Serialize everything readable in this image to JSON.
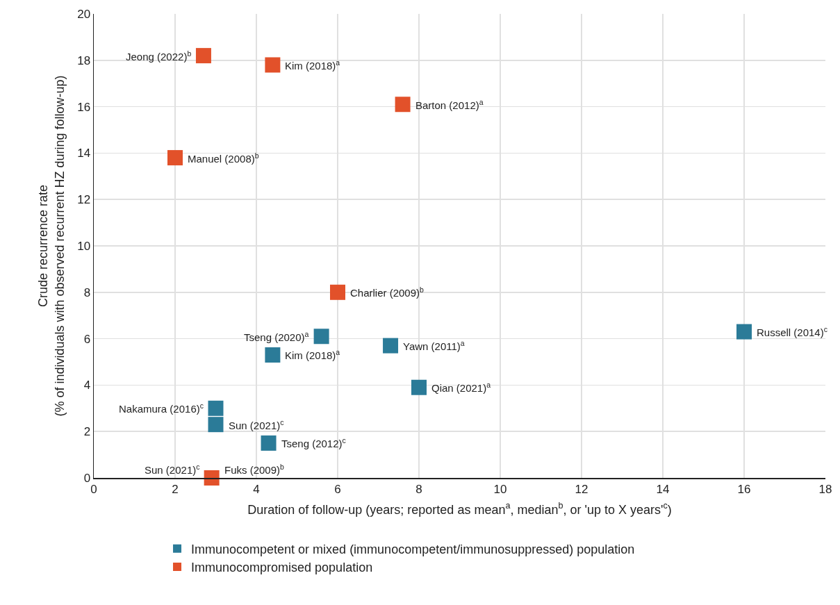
{
  "chart_data": {
    "type": "scatter",
    "xlabel": "Duration of follow-up (years; reported as mean$^{a}$, median$^{b}$, or 'up to X years'$^{c}$)",
    "ylabel": "Crude recurrence rate\n(% of individuals with observed recurrent HZ during follow-up)",
    "xlim": [
      0,
      18
    ],
    "xticks": [
      0,
      2,
      4,
      6,
      8,
      10,
      12,
      14,
      16,
      18
    ],
    "ylim": [
      0,
      20
    ],
    "yticks": [
      0,
      2,
      4,
      6,
      8,
      10,
      12,
      14,
      16,
      18,
      20
    ],
    "grid": true,
    "legend": "bottom",
    "marker": "square",
    "series": [
      {
        "name": "Immunocompetent or mixed (immunocompetent/immunosuppressed) population",
        "color": "#2b7b98",
        "x": [
          5.6,
          4.4,
          7.3,
          16.0,
          8.0,
          3.0,
          3.0,
          4.3
        ],
        "values": [
          6.1,
          5.3,
          5.7,
          6.3,
          3.9,
          3.0,
          2.3,
          1.5
        ]
      },
      {
        "name": "Immunocompromised population",
        "color": "#e2512a",
        "x": [
          2.7,
          4.4,
          7.6,
          2.0,
          6.0,
          2.9
        ],
        "values": [
          18.2,
          17.8,
          16.1,
          13.8,
          8.0,
          0.0
        ]
      }
    ],
    "annotations": [
      {
        "text": "Russell (2014)$^{c}$",
        "x": 16.0,
        "y": 6.3
      },
      {
        "text": "Tseng (2012)$^{c}$",
        "x": 4.3,
        "y": 1.5
      },
      {
        "text": "Fuks (2009)$^{b}$",
        "x": 2.9,
        "y": 0.0
      },
      {
        "text": "Sun (2021)$^{c}$",
        "x": 2.9,
        "y": 0.0
      },
      {
        "text": "Kim (2018)$^{a}$",
        "x": 4.4,
        "y": 17.8
      },
      {
        "text": "Jeong (2022)$^{b}$",
        "x": 2.7,
        "y": 18.2
      },
      {
        "text": "Barton (2012)$^{a}$",
        "x": 7.6,
        "y": 16.1
      },
      {
        "text": "Manuel (2008)$^{b}$",
        "x": 2.0,
        "y": 13.8
      },
      {
        "text": "Charlier (2009)$^{b}$",
        "x": 6.0,
        "y": 8.0
      },
      {
        "text": "Yawn (2011)$^{a}$",
        "x": 7.3,
        "y": 5.7
      },
      {
        "text": "Tseng (2020)$^{a}$",
        "x": 5.6,
        "y": 6.1
      },
      {
        "text": "Kim (2018)$^{a}$",
        "x": 4.4,
        "y": 5.3
      },
      {
        "text": "Qian (2021)$^{a}$",
        "x": 8.0,
        "y": 3.9
      },
      {
        "text": "Sun (2021)$^{c}$",
        "x": 3.0,
        "y": 2.3
      },
      {
        "text": "Nakamura (2016)$^{c}$",
        "x": 3.0,
        "y": 3.0
      }
    ]
  }
}
